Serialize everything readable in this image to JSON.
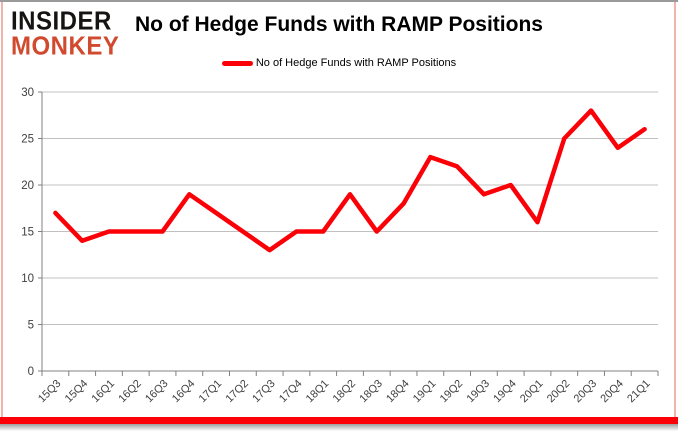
{
  "brand": {
    "line1": "INSIDER",
    "line2": "MONKEY",
    "monkey_color": "#d14a2e"
  },
  "header": {
    "title": "No of Hedge Funds with RAMP Positions"
  },
  "legend": {
    "label": "No of Hedge Funds with RAMP Positions",
    "line_color": "#fb0007"
  },
  "chart_data": {
    "type": "line",
    "title": "No of Hedge Funds with RAMP Positions",
    "categories": [
      "15Q3",
      "15Q4",
      "16Q1",
      "16Q2",
      "16Q3",
      "16Q4",
      "17Q1",
      "17Q2",
      "17Q3",
      "17Q4",
      "18Q1",
      "18Q2",
      "18Q3",
      "18Q4",
      "19Q1",
      "19Q2",
      "19Q3",
      "19Q4",
      "20Q1",
      "20Q2",
      "20Q3",
      "20Q4",
      "21Q1"
    ],
    "series": [
      {
        "name": "No of Hedge Funds with RAMP Positions",
        "color": "#fb0007",
        "values": [
          17,
          14,
          15,
          15,
          15,
          19,
          17,
          15,
          13,
          15,
          15,
          19,
          15,
          18,
          23,
          22,
          19,
          20,
          16,
          25,
          28,
          24,
          26
        ]
      }
    ],
    "xlabel": "",
    "ylabel": "",
    "ylim": [
      0,
      30
    ],
    "yticks": [
      0,
      5,
      10,
      15,
      20,
      25,
      30
    ],
    "grid": true,
    "legend_position": "top-center",
    "gridline_color": "#c0c0c0",
    "axis_color": "#808080",
    "tick_label_color": "#3f3f3f"
  }
}
